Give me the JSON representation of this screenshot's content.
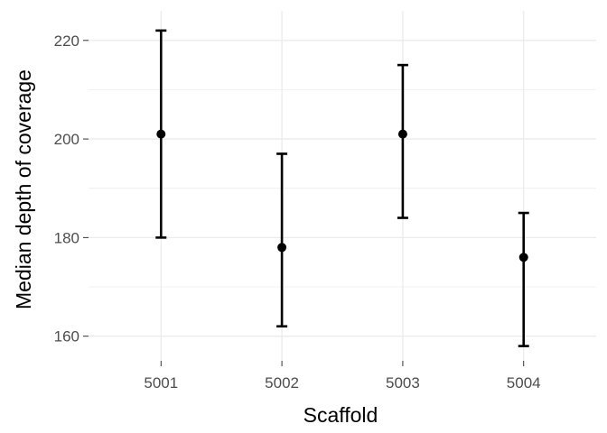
{
  "chart_data": {
    "type": "errorbar",
    "title": "",
    "xlabel": "Scaffold",
    "ylabel": "Median depth of coverage",
    "categories": [
      "5001",
      "5002",
      "5003",
      "5004"
    ],
    "series": [
      {
        "values": [
          201,
          178,
          201,
          176
        ],
        "lower": [
          180,
          162,
          184,
          158
        ],
        "upper": [
          222,
          197,
          215,
          185
        ]
      }
    ],
    "ylim": [
      155,
      226
    ],
    "yticks": [
      160,
      180,
      200,
      220
    ],
    "ytick_labels": [
      "160",
      "180",
      "200",
      "220"
    ],
    "grid": true,
    "legend": "none",
    "colors": {
      "mark": "#000000",
      "grid": "#ebebeb",
      "tick_text": "#4d4d4d"
    }
  }
}
